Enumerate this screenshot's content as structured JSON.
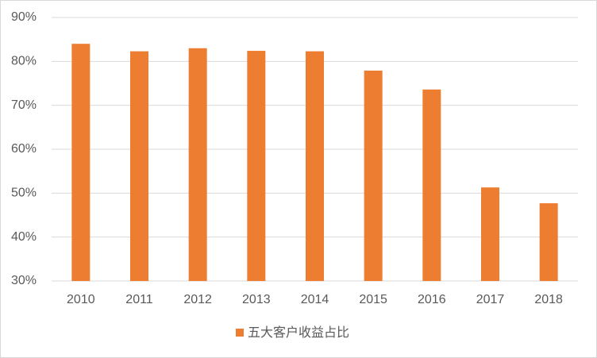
{
  "chart_data": {
    "type": "bar",
    "categories": [
      "2010",
      "2011",
      "2012",
      "2013",
      "2014",
      "2015",
      "2016",
      "2017",
      "2018"
    ],
    "series": [
      {
        "name": "五大客户收益占比",
        "color": "#ed7d31",
        "values": [
          84,
          82.3,
          83,
          82.4,
          82.3,
          77.9,
          73.6,
          51.3,
          47.7
        ]
      }
    ],
    "ylim": [
      30,
      90
    ],
    "yticks": [
      {
        "value": 30,
        "label": "30%"
      },
      {
        "value": 40,
        "label": "40%"
      },
      {
        "value": 50,
        "label": "50%"
      },
      {
        "value": 60,
        "label": "60%"
      },
      {
        "value": 70,
        "label": "70%"
      },
      {
        "value": 80,
        "label": "80%"
      },
      {
        "value": 90,
        "label": "90%"
      }
    ],
    "grid": true,
    "legend": "bottom"
  }
}
